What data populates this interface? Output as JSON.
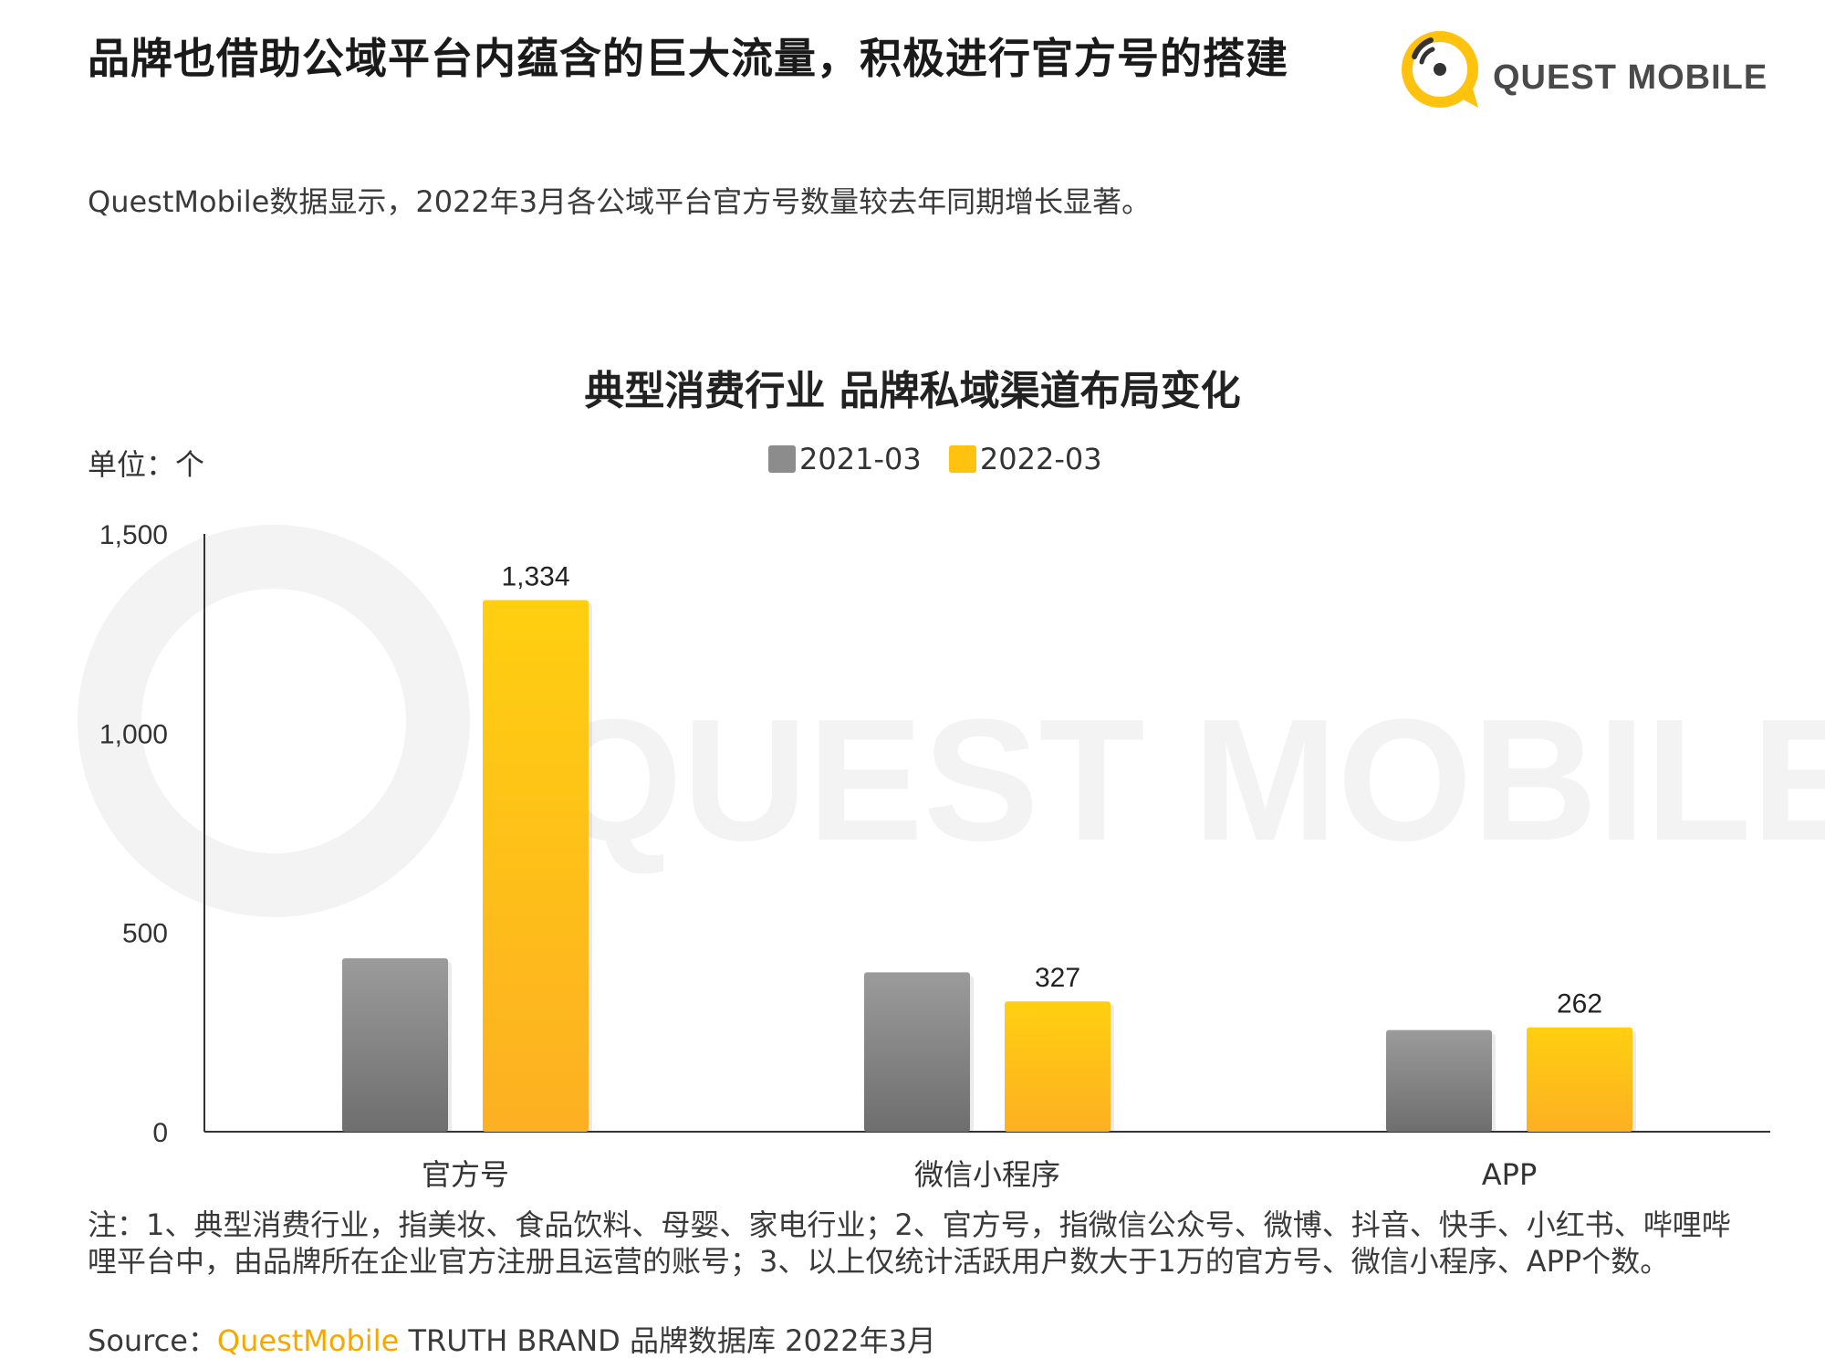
{
  "header": {
    "headline": "品牌也借助公域平台内蕴含的巨大流量，积极进行官方号的搭建",
    "logo_text": "QUEST MOBILE"
  },
  "subtitle": "QuestMobile数据显示，2022年3月各公域平台官方号数量较去年同期增长显著。",
  "unit_label": "单位：个",
  "watermark_text": "QUEST MOBILE",
  "colors": {
    "series_2021": "#8c8c8c",
    "series_2022": "#ffc20e",
    "accent": "#f5a800"
  },
  "chart_data": {
    "type": "bar",
    "title": "典型消费行业 品牌私域渠道布局变化",
    "categories": [
      "官方号",
      "微信小程序",
      "APP"
    ],
    "series": [
      {
        "name": "2021-03",
        "values": [
          435,
          400,
          255
        ],
        "labels": [
          "",
          "",
          ""
        ]
      },
      {
        "name": "2022-03",
        "values": [
          1334,
          327,
          262
        ],
        "labels": [
          "1,334",
          "327",
          "262"
        ]
      }
    ],
    "yticks": [
      "0",
      "500",
      "1,000",
      "1,500"
    ],
    "ytick_values": [
      0,
      500,
      1000,
      1500
    ],
    "ylim": [
      0,
      1500
    ],
    "legend": "top-center",
    "grid": false
  },
  "note": "注：1、典型消费行业，指美妆、食品饮料、母婴、家电行业；2、官方号，指微信公众号、微博、抖音、快手、小红书、哔哩哔哩平台中，由品牌所在企业官方注册且运营的账号；3、以上仅统计活跃用户数大于1万的官方号、微信小程序、APP个数。",
  "source": {
    "prefix": "Source：",
    "brand": "QuestMobile",
    "rest": " TRUTH BRAND 品牌数据库 2022年3月"
  }
}
